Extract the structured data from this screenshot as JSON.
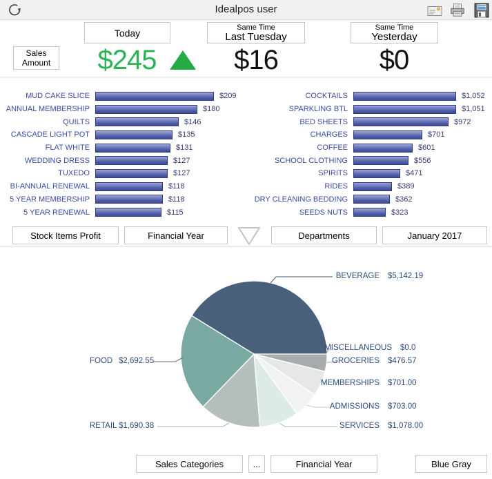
{
  "titlebar": {
    "title": "Idealpos user",
    "icons": [
      "refresh-icon",
      "email-icon",
      "print-icon",
      "save-icon"
    ]
  },
  "summary": {
    "metric_label_line1": "Sales",
    "metric_label_line2": "Amount",
    "accent_color": "#2db357",
    "columns": [
      {
        "period_line1": "Today",
        "period_line2": "",
        "value": "$245",
        "trend": "up"
      },
      {
        "period_line1": "Same Time",
        "period_line2": "Last Tuesday",
        "value": "$16"
      },
      {
        "period_line1": "Same Time",
        "period_line2": "Yesterday",
        "value": "$0"
      }
    ]
  },
  "toolbar_mid": {
    "buttons": [
      "Stock Items Profit",
      "Financial Year",
      "Departments",
      "January 2017"
    ]
  },
  "toolbar_bottom": {
    "buttons": [
      "Sales Categories",
      "...",
      "Financial Year",
      "Blue Gray"
    ]
  },
  "chart_data": [
    {
      "type": "bar",
      "orientation": "horizontal",
      "panel": "left",
      "title": "Stock Items Profit",
      "categories": [
        "MUD CAKE SLICE",
        "ANNUAL MEMBERSHIP",
        "QUILTS",
        "CASCADE LIGHT POT",
        "FLAT WHITE",
        "WEDDING DRESS",
        "TUXEDO",
        "BI-ANNUAL RENEWAL",
        "5 YEAR MEMBERSHIP",
        "5 YEAR RENEWAL"
      ],
      "values": [
        209,
        180,
        146,
        135,
        131,
        127,
        127,
        118,
        118,
        115
      ],
      "value_labels": [
        "$209",
        "$180",
        "$146",
        "$135",
        "$131",
        "$127",
        "$127",
        "$118",
        "$118",
        "$115"
      ],
      "bar_color": "#5b68af"
    },
    {
      "type": "bar",
      "orientation": "horizontal",
      "panel": "right",
      "title": "Departments",
      "categories": [
        "COCKTAILS",
        "SPARKLING BTL",
        "BED SHEETS",
        "CHARGES",
        "COFFEE",
        "SCHOOL CLOTHING",
        "SPIRITS",
        "RIDES",
        "DRY CLEANING BEDDING",
        "SEEDS NUTS"
      ],
      "values": [
        1052,
        1051,
        972,
        701,
        601,
        556,
        471,
        389,
        362,
        323
      ],
      "value_labels": [
        "$1,052",
        "$1,051",
        "$972",
        "$701",
        "$601",
        "$556",
        "$471",
        "$389",
        "$362",
        "$323"
      ],
      "bar_color": "#5b68af"
    },
    {
      "type": "pie",
      "title": "Sales Categories",
      "period": "Financial Year",
      "palette_name": "Blue Gray",
      "start_angle_deg": 301.7,
      "slices": [
        {
          "name": "BEVERAGE",
          "value": 5142.19,
          "label": "$5,142.19",
          "color": "#49607a",
          "line_color": "#44596e"
        },
        {
          "name": "MISCELLANEOUS",
          "value": 0,
          "label": "$0.0",
          "color": "#8f9394",
          "line_color": "#999d9e"
        },
        {
          "name": "GROCERIES",
          "value": 476.57,
          "label": "$476.57",
          "color": "#a7abac",
          "line_color": "#999d9e"
        },
        {
          "name": "MEMBERSHIPS",
          "value": 701.0,
          "label": "$701.00",
          "color": "#e6e8e8",
          "line_color": "#c6c9c9"
        },
        {
          "name": "ADMISSIONS",
          "value": 703.0,
          "label": "$703.00",
          "color": "#f1f3f3",
          "line_color": "#c6c9c9"
        },
        {
          "name": "SERVICES",
          "value": 1078.0,
          "label": "$1,078.00",
          "color": "#dcebe7",
          "line_color": "#9dbfba"
        },
        {
          "name": "RETAIL",
          "value": 1690.38,
          "label": "$1,690.38",
          "color": "#b4bebc",
          "line_color": "#a9b3b1"
        },
        {
          "name": "FOOD",
          "value": 2692.55,
          "label": "$2,692.55",
          "color": "#7aa9a3",
          "line_color": "#52707e"
        }
      ]
    }
  ]
}
